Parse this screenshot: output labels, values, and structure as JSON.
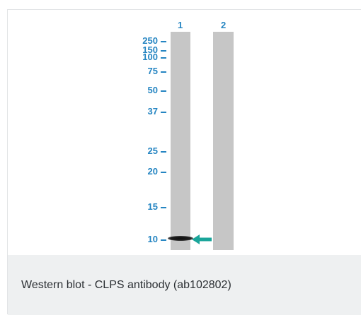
{
  "figure": {
    "lanes": [
      {
        "label": "1"
      },
      {
        "label": "2"
      }
    ],
    "markers": [
      {
        "label": "250",
        "kda": 250
      },
      {
        "label": "150",
        "kda": 150
      },
      {
        "label": "100",
        "kda": 100
      },
      {
        "label": "75",
        "kda": 75
      },
      {
        "label": "50",
        "kda": 50
      },
      {
        "label": "37",
        "kda": 37
      },
      {
        "label": "25",
        "kda": 25
      },
      {
        "label": "20",
        "kda": 20
      },
      {
        "label": "15",
        "kda": 15
      },
      {
        "label": "10",
        "kda": 10
      }
    ],
    "arrow_color": "#1aa59a",
    "label_color": "#2585c2",
    "lane_color": "#c6c6c6"
  },
  "caption": {
    "text": "Western blot - CLPS antibody (ab102802)"
  }
}
